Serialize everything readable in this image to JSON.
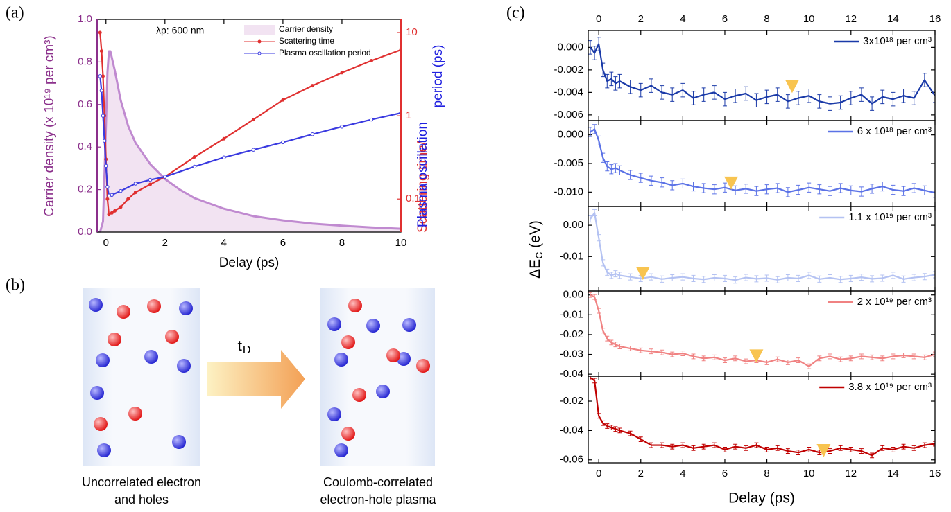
{
  "panel_labels": [
    "(a)",
    "(b)",
    "(c)"
  ],
  "diagram": {
    "transition": {
      "main": "t",
      "sub": "D"
    },
    "left_caption": [
      "Uncorrelated electron",
      "and holes"
    ],
    "right_caption": [
      "Coulomb-correlated",
      "electron-hole plasma"
    ]
  },
  "chart_data": [
    {
      "type": "line",
      "annotation": "λp: 600 nm",
      "xlabel": "Delay (ps)",
      "ylabel": "Carrier density (x 10¹⁹ per cm³)",
      "ylabel_color": "#8b2f8b",
      "y2label": [
        "Scattering time/",
        "Plasma oscillation",
        "period (ps)"
      ],
      "y2label_colors": [
        "#e03030",
        "#2020e0",
        "#2020e0"
      ],
      "xlim": [
        -0.3,
        10
      ],
      "xticks": [
        0,
        2,
        4,
        6,
        8,
        10
      ],
      "ylim": [
        0,
        1
      ],
      "yticks": [
        {
          "value": 0,
          "label": "0.0"
        },
        0.2,
        0.4,
        0.6,
        0.8,
        {
          "value": 1,
          "label": "1.0"
        }
      ],
      "y2lim": [
        0.04,
        14.4
      ],
      "y2ticks": [
        0.1,
        1,
        10
      ],
      "y2_scale": "log",
      "y2_color": "#e03030",
      "series": [
        {
          "name": "Carrier density",
          "color": "#c08ad0",
          "fill": "#f2e3f2",
          "axis": "y",
          "x": [
            -0.3,
            -0.2,
            -0.1,
            0,
            0.05,
            0.1,
            0.15,
            0.2,
            0.3,
            0.5,
            0.75,
            1,
            1.5,
            2,
            2.5,
            3,
            4,
            5,
            6,
            7,
            8,
            9,
            10
          ],
          "values": [
            0,
            0,
            0.05,
            0.5,
            0.75,
            0.85,
            0.85,
            0.82,
            0.76,
            0.62,
            0.5,
            0.42,
            0.32,
            0.25,
            0.2,
            0.16,
            0.11,
            0.075,
            0.055,
            0.04,
            0.03,
            0.022,
            0.016
          ]
        },
        {
          "name": "Scattering time",
          "color": "#e03030",
          "axis": "y2",
          "marker": "dot",
          "x": [
            -0.2,
            -0.15,
            -0.1,
            -0.05,
            0,
            0.05,
            0.1,
            0.2,
            0.3,
            0.5,
            0.75,
            1,
            1.5,
            2,
            3,
            4,
            5,
            6,
            7,
            8,
            9,
            10
          ],
          "values": [
            10,
            6,
            3,
            1,
            0.3,
            0.1,
            0.065,
            0.068,
            0.072,
            0.08,
            0.1,
            0.12,
            0.15,
            0.185,
            0.32,
            0.53,
            0.9,
            1.55,
            2.3,
            3.3,
            4.6,
            6.2
          ]
        },
        {
          "name": "Plasma oscillation period",
          "color": "#3a3ae0",
          "axis": "y2",
          "marker": "open",
          "x": [
            -0.2,
            -0.15,
            -0.1,
            -0.05,
            0,
            0.05,
            0.1,
            0.2,
            0.5,
            1,
            1.5,
            2,
            3,
            4,
            5,
            6,
            7,
            8,
            9,
            10
          ],
          "values": [
            3,
            2,
            1,
            0.5,
            0.25,
            0.14,
            0.11,
            0.112,
            0.125,
            0.153,
            0.17,
            0.185,
            0.245,
            0.316,
            0.39,
            0.48,
            0.6,
            0.74,
            0.9,
            1.08
          ]
        }
      ]
    },
    {
      "type": "line",
      "x_top_labels": true,
      "xlim": [
        -0.5,
        16
      ],
      "xticks": [
        0,
        2,
        4,
        6,
        8,
        10,
        12,
        14,
        16
      ],
      "ylim": [
        -0.0065,
        0.0015
      ],
      "yticks": [
        {
          "value": 0,
          "label": "0.000"
        },
        -0.002,
        -0.004,
        -0.006
      ],
      "marker": {
        "x": 9.2,
        "y": -0.0035,
        "color": "#f8c450"
      },
      "series": [
        {
          "name": "3x10¹⁸ per cm³",
          "color": "#1a3aa8",
          "error": 0.0006,
          "x": [
            -0.4,
            -0.2,
            0,
            0.2,
            0.4,
            0.6,
            0.8,
            1,
            1.5,
            2,
            2.5,
            3,
            3.5,
            4,
            4.5,
            5,
            5.5,
            6,
            6.5,
            7,
            7.5,
            8,
            8.5,
            9,
            9.5,
            10,
            10.5,
            11,
            11.5,
            12,
            12.5,
            13,
            13.5,
            14,
            14.5,
            15,
            15.5,
            16
          ],
          "values": [
            0,
            -0.0005,
            0.0003,
            -0.002,
            -0.003,
            -0.0028,
            -0.0032,
            -0.003,
            -0.0035,
            -0.0038,
            -0.0034,
            -0.004,
            -0.0042,
            -0.0038,
            -0.0045,
            -0.0042,
            -0.004,
            -0.0046,
            -0.0043,
            -0.0041,
            -0.0047,
            -0.0044,
            -0.0042,
            -0.0048,
            -0.0045,
            -0.0043,
            -0.0048,
            -0.005,
            -0.0049,
            -0.0045,
            -0.0042,
            -0.005,
            -0.0044,
            -0.0046,
            -0.0043,
            -0.0045,
            -0.0029,
            -0.0043
          ]
        }
      ]
    },
    {
      "type": "line",
      "xlim": [
        -0.5,
        16
      ],
      "xticks": [
        0,
        2,
        4,
        6,
        8,
        10,
        12,
        14,
        16
      ],
      "ylim": [
        -0.0125,
        0.0025
      ],
      "yticks": [
        {
          "value": 0,
          "label": "0.000"
        },
        -0.005,
        {
          "value": -0.01,
          "label": "-0.010"
        }
      ],
      "marker": {
        "x": 6.3,
        "y": -0.0085,
        "color": "#f8c450"
      },
      "series": [
        {
          "name": "6 x 10¹⁸ per cm³",
          "color": "#5b72e6",
          "error": 0.0008,
          "x": [
            -0.4,
            -0.2,
            0,
            0.2,
            0.4,
            0.6,
            0.8,
            1,
            1.5,
            2,
            2.5,
            3,
            3.5,
            4,
            4.5,
            5,
            5.5,
            6,
            6.5,
            7,
            7.5,
            8,
            8.5,
            9,
            9.5,
            10,
            10.5,
            11,
            11.5,
            12,
            12.5,
            13,
            13.5,
            14,
            14.5,
            15,
            15.5,
            16
          ],
          "values": [
            0.0005,
            0.001,
            -0.001,
            -0.004,
            -0.0055,
            -0.006,
            -0.0058,
            -0.0062,
            -0.007,
            -0.0075,
            -0.008,
            -0.0083,
            -0.0088,
            -0.0085,
            -0.009,
            -0.0093,
            -0.0095,
            -0.0092,
            -0.0097,
            -0.0094,
            -0.0098,
            -0.0095,
            -0.0093,
            -0.01,
            -0.0096,
            -0.0092,
            -0.0095,
            -0.0098,
            -0.0093,
            -0.0097,
            -0.0099,
            -0.0094,
            -0.009,
            -0.0096,
            -0.0098,
            -0.0093,
            -0.0097,
            -0.0101
          ]
        }
      ]
    },
    {
      "type": "line",
      "ylabel": {
        "text": "ΔE",
        "sub": "C",
        "unit": " (eV)"
      },
      "xlim": [
        -0.5,
        16
      ],
      "xticks": [
        0,
        2,
        4,
        6,
        8,
        10,
        12,
        14,
        16
      ],
      "ylim": [
        -0.021,
        0.006
      ],
      "yticks": [
        {
          "value": 0,
          "label": "0.00"
        },
        -0.01
      ],
      "marker": {
        "x": 2.1,
        "y": -0.0155,
        "color": "#f8c450"
      },
      "series": [
        {
          "name": "1.1 x 10¹⁹ per cm³",
          "color": "#b4c2f2",
          "error": 0.001,
          "x": [
            -0.4,
            -0.2,
            0,
            0.2,
            0.4,
            0.6,
            0.8,
            1,
            1.5,
            2,
            2.5,
            3,
            3.5,
            4,
            4.5,
            5,
            5.5,
            6,
            6.5,
            7,
            7.5,
            8,
            8.5,
            9,
            9.5,
            10,
            10.5,
            11,
            11.5,
            12,
            12.5,
            13,
            13.5,
            14,
            14.5,
            15,
            15.5,
            16
          ],
          "values": [
            0.002,
            0.004,
            -0.004,
            -0.012,
            -0.015,
            -0.016,
            -0.0155,
            -0.016,
            -0.0165,
            -0.017,
            -0.0165,
            -0.0172,
            -0.0168,
            -0.0165,
            -0.017,
            -0.0173,
            -0.0168,
            -0.017,
            -0.0175,
            -0.0167,
            -0.0171,
            -0.0169,
            -0.0174,
            -0.0168,
            -0.017,
            -0.016,
            -0.0172,
            -0.0168,
            -0.0173,
            -0.017,
            -0.0166,
            -0.0171,
            -0.0169,
            -0.016,
            -0.0172,
            -0.0167,
            -0.0164,
            -0.0158
          ]
        }
      ]
    },
    {
      "type": "line",
      "xlim": [
        -0.5,
        16
      ],
      "xticks": [
        0,
        2,
        4,
        6,
        8,
        10,
        12,
        14,
        16
      ],
      "ylim": [
        -0.041,
        0.002
      ],
      "yticks": [
        {
          "value": 0,
          "label": "0.00"
        },
        -0.01,
        -0.02,
        -0.03,
        -0.04
      ],
      "marker": {
        "x": 7.5,
        "y": -0.031,
        "color": "#f8c450"
      },
      "series": [
        {
          "name": "2 x 10¹⁹ per cm³",
          "color": "#f08282",
          "error": 0.0012,
          "x": [
            -0.4,
            -0.2,
            0,
            0.2,
            0.4,
            0.6,
            0.8,
            1,
            1.5,
            2,
            2.5,
            3,
            3.5,
            4,
            4.5,
            5,
            5.5,
            6,
            6.5,
            7,
            7.5,
            8,
            8.5,
            9,
            9.5,
            10,
            10.5,
            11,
            11.5,
            12,
            12.5,
            13,
            13.5,
            14,
            14.5,
            15,
            15.5,
            16
          ],
          "values": [
            0,
            -0.001,
            -0.008,
            -0.018,
            -0.022,
            -0.024,
            -0.025,
            -0.026,
            -0.027,
            -0.028,
            -0.0285,
            -0.029,
            -0.03,
            -0.0295,
            -0.031,
            -0.032,
            -0.0315,
            -0.033,
            -0.032,
            -0.0335,
            -0.033,
            -0.034,
            -0.0325,
            -0.034,
            -0.033,
            -0.036,
            -0.032,
            -0.031,
            -0.0325,
            -0.032,
            -0.031,
            -0.0315,
            -0.032,
            -0.031,
            -0.0305,
            -0.031,
            -0.0315,
            -0.03
          ]
        }
      ]
    },
    {
      "type": "line",
      "x_tick_labels": true,
      "xlabel": "Delay (ps)",
      "xlim": [
        -0.5,
        16
      ],
      "xticks": [
        0,
        2,
        4,
        6,
        8,
        10,
        12,
        14,
        16
      ],
      "ylim": [
        -0.062,
        -0.003
      ],
      "yticks": [
        -0.02,
        -0.04,
        -0.06
      ],
      "marker": {
        "x": 10.7,
        "y": -0.054,
        "color": "#f8c450"
      },
      "series": [
        {
          "name": "3.8 x 10¹⁹ per cm³",
          "color": "#c00000",
          "error": 0.0016,
          "x": [
            -0.4,
            -0.2,
            0,
            0.2,
            0.4,
            0.6,
            0.8,
            1,
            1.5,
            2,
            2.5,
            3,
            3.5,
            4,
            4.5,
            5,
            5.5,
            6,
            6.5,
            7,
            7.5,
            8,
            8.5,
            9,
            9.5,
            10,
            10.5,
            11,
            11.5,
            12,
            12.5,
            13,
            13.5,
            14,
            14.5,
            15,
            15.5,
            16
          ],
          "values": [
            -0.004,
            -0.006,
            -0.03,
            -0.035,
            -0.037,
            -0.038,
            -0.039,
            -0.04,
            -0.042,
            -0.046,
            -0.05,
            -0.05,
            -0.051,
            -0.05,
            -0.052,
            -0.051,
            -0.05,
            -0.053,
            -0.051,
            -0.052,
            -0.05,
            -0.053,
            -0.052,
            -0.054,
            -0.055,
            -0.053,
            -0.055,
            -0.054,
            -0.052,
            -0.053,
            -0.054,
            -0.057,
            -0.052,
            -0.053,
            -0.051,
            -0.052,
            -0.05,
            -0.049
          ]
        }
      ]
    }
  ]
}
